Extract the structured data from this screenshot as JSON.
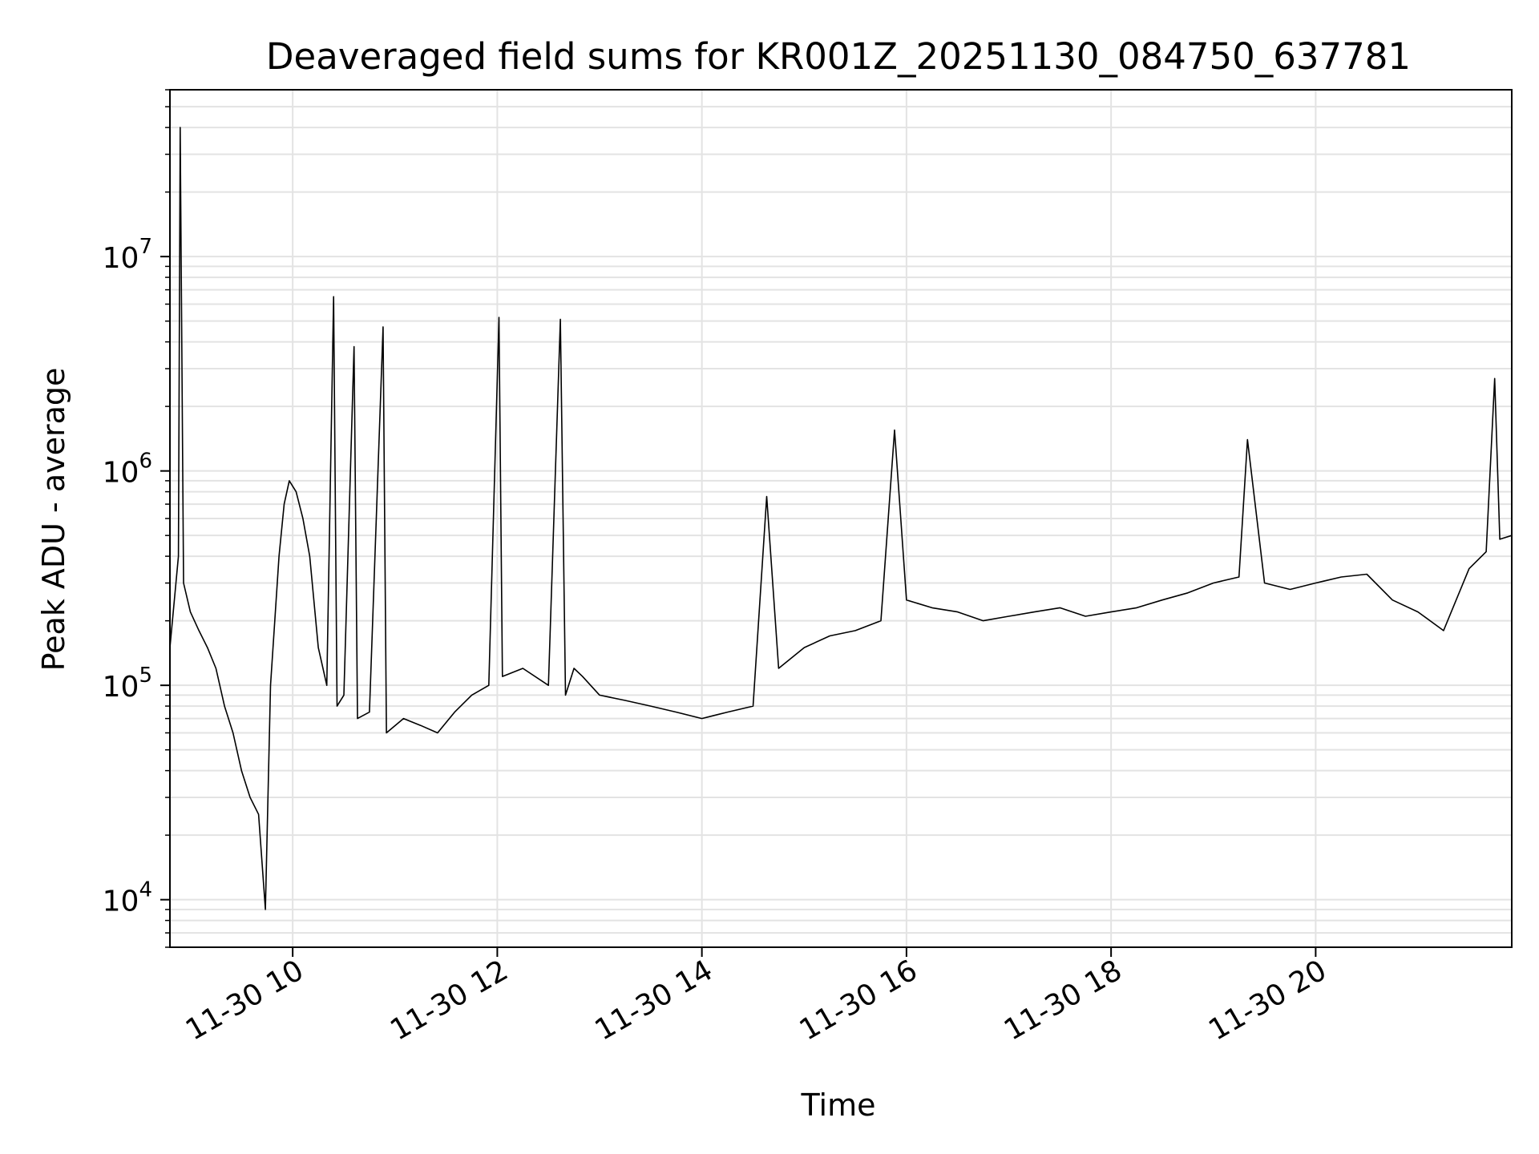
{
  "chart_data": {
    "type": "line",
    "title": "Deaveraged field sums for KR001Z_20251130_084750_637781",
    "xlabel": "Time",
    "ylabel": "Peak ADU - average",
    "yscale": "log",
    "grid": true,
    "line_color": "#000000",
    "grid_color": "#e3e3e3",
    "xlim": [
      "2025-11-30 08:48",
      "2025-11-30 21:55"
    ],
    "ylim": [
      6000,
      60000000
    ],
    "x_ticks": [
      {
        "value": "2025-11-30 10:00",
        "label": "11-30 10"
      },
      {
        "value": "2025-11-30 12:00",
        "label": "11-30 12"
      },
      {
        "value": "2025-11-30 14:00",
        "label": "11-30 14"
      },
      {
        "value": "2025-11-30 16:00",
        "label": "11-30 16"
      },
      {
        "value": "2025-11-30 18:00",
        "label": "11-30 18"
      },
      {
        "value": "2025-11-30 20:00",
        "label": "11-30 20"
      }
    ],
    "y_ticks": [
      {
        "value": 10000,
        "base": "10",
        "exp": "4"
      },
      {
        "value": 100000,
        "base": "10",
        "exp": "5"
      },
      {
        "value": 1000000,
        "base": "10",
        "exp": "6"
      },
      {
        "value": 10000000,
        "base": "10",
        "exp": "7"
      }
    ],
    "series": [
      {
        "points": [
          [
            "2025-11-30 08:48",
            150000
          ],
          [
            "2025-11-30 08:53",
            400000
          ],
          [
            "2025-11-30 08:54",
            40000000
          ],
          [
            "2025-11-30 08:56",
            300000
          ],
          [
            "2025-11-30 09:00",
            220000
          ],
          [
            "2025-11-30 09:05",
            180000
          ],
          [
            "2025-11-30 09:10",
            150000
          ],
          [
            "2025-11-30 09:15",
            120000
          ],
          [
            "2025-11-30 09:20",
            80000
          ],
          [
            "2025-11-30 09:25",
            60000
          ],
          [
            "2025-11-30 09:30",
            40000
          ],
          [
            "2025-11-30 09:35",
            30000
          ],
          [
            "2025-11-30 09:40",
            25000
          ],
          [
            "2025-11-30 09:44",
            9000
          ],
          [
            "2025-11-30 09:47",
            100000
          ],
          [
            "2025-11-30 09:52",
            400000
          ],
          [
            "2025-11-30 09:55",
            700000
          ],
          [
            "2025-11-30 09:58",
            900000
          ],
          [
            "2025-11-30 10:02",
            800000
          ],
          [
            "2025-11-30 10:06",
            600000
          ],
          [
            "2025-11-30 10:10",
            400000
          ],
          [
            "2025-11-30 10:15",
            150000
          ],
          [
            "2025-11-30 10:20",
            100000
          ],
          [
            "2025-11-30 10:24",
            6500000
          ],
          [
            "2025-11-30 10:26",
            80000
          ],
          [
            "2025-11-30 10:30",
            90000
          ],
          [
            "2025-11-30 10:36",
            3800000
          ],
          [
            "2025-11-30 10:38",
            70000
          ],
          [
            "2025-11-30 10:45",
            75000
          ],
          [
            "2025-11-30 10:53",
            4700000
          ],
          [
            "2025-11-30 10:55",
            60000
          ],
          [
            "2025-11-30 11:05",
            70000
          ],
          [
            "2025-11-30 11:15",
            65000
          ],
          [
            "2025-11-30 11:25",
            60000
          ],
          [
            "2025-11-30 11:35",
            75000
          ],
          [
            "2025-11-30 11:45",
            90000
          ],
          [
            "2025-11-30 11:55",
            100000
          ],
          [
            "2025-11-30 12:01",
            5200000
          ],
          [
            "2025-11-30 12:03",
            110000
          ],
          [
            "2025-11-30 12:15",
            120000
          ],
          [
            "2025-11-30 12:30",
            100000
          ],
          [
            "2025-11-30 12:40",
            90000
          ],
          [
            "2025-11-30 12:45",
            120000
          ],
          [
            "2025-11-30 12:37",
            5100000
          ],
          [
            "2025-11-30 12:50",
            110000
          ],
          [
            "2025-11-30 13:00",
            90000
          ],
          [
            "2025-11-30 13:15",
            85000
          ],
          [
            "2025-11-30 13:30",
            80000
          ],
          [
            "2025-11-30 13:45",
            75000
          ],
          [
            "2025-11-30 14:00",
            70000
          ],
          [
            "2025-11-30 14:15",
            75000
          ],
          [
            "2025-11-30 14:30",
            80000
          ],
          [
            "2025-11-30 14:38",
            760000
          ],
          [
            "2025-11-30 14:45",
            120000
          ],
          [
            "2025-11-30 15:00",
            150000
          ],
          [
            "2025-11-30 15:15",
            170000
          ],
          [
            "2025-11-30 15:30",
            180000
          ],
          [
            "2025-11-30 15:45",
            200000
          ],
          [
            "2025-11-30 15:53",
            1550000
          ],
          [
            "2025-11-30 16:00",
            250000
          ],
          [
            "2025-11-30 16:15",
            230000
          ],
          [
            "2025-11-30 16:30",
            220000
          ],
          [
            "2025-11-30 16:45",
            200000
          ],
          [
            "2025-11-30 17:00",
            210000
          ],
          [
            "2025-11-30 17:15",
            220000
          ],
          [
            "2025-11-30 17:30",
            230000
          ],
          [
            "2025-11-30 17:45",
            210000
          ],
          [
            "2025-11-30 18:00",
            220000
          ],
          [
            "2025-11-30 18:15",
            230000
          ],
          [
            "2025-11-30 18:30",
            250000
          ],
          [
            "2025-11-30 18:45",
            270000
          ],
          [
            "2025-11-30 19:00",
            300000
          ],
          [
            "2025-11-30 19:15",
            320000
          ],
          [
            "2025-11-30 19:20",
            1400000
          ],
          [
            "2025-11-30 19:30",
            300000
          ],
          [
            "2025-11-30 19:45",
            280000
          ],
          [
            "2025-11-30 20:00",
            300000
          ],
          [
            "2025-11-30 20:15",
            320000
          ],
          [
            "2025-11-30 20:30",
            330000
          ],
          [
            "2025-11-30 20:45",
            250000
          ],
          [
            "2025-11-30 21:00",
            220000
          ],
          [
            "2025-11-30 21:15",
            180000
          ],
          [
            "2025-11-30 21:30",
            350000
          ],
          [
            "2025-11-30 21:40",
            420000
          ],
          [
            "2025-11-30 21:45",
            2700000
          ],
          [
            "2025-11-30 21:48",
            480000
          ],
          [
            "2025-11-30 21:55",
            500000
          ]
        ]
      }
    ]
  }
}
